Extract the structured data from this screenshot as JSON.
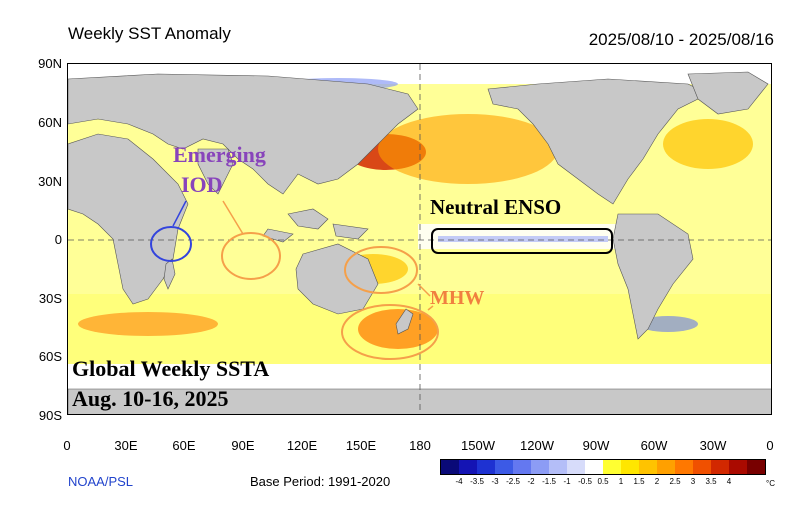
{
  "header": {
    "title": "Weekly SST Anomaly",
    "date_range": "2025/08/10 - 2025/08/16"
  },
  "axes": {
    "lat_labels": [
      "90N",
      "60N",
      "30N",
      "0",
      "30S",
      "60S",
      "90S"
    ],
    "lon_labels": [
      "0",
      "30E",
      "60E",
      "90E",
      "120E",
      "150E",
      "180",
      "150W",
      "120W",
      "90W",
      "60W",
      "30W",
      "0"
    ]
  },
  "annotations": {
    "iod_line1": "Emerging",
    "iod_line2": "IOD",
    "enso": "Neutral ENSO",
    "mhw": "MHW",
    "summary_line1": "Global Weekly SSTA",
    "summary_line2": "Aug. 10-16, 2025"
  },
  "footer": {
    "source": "NOAA/PSL",
    "base_period": "Base Period: 1991-2020"
  },
  "colorbar": {
    "unit": "°C",
    "tick_labels": [
      "-4",
      "-3.5",
      "-3",
      "-2.5",
      "-2",
      "-1.5",
      "-1",
      "-0.5",
      "0.5",
      "1",
      "1.5",
      "2",
      "2.5",
      "3",
      "3.5",
      "4"
    ],
    "colors": [
      "#0a0a78",
      "#1414b4",
      "#1e32d2",
      "#3c5ae6",
      "#6478f0",
      "#8c9cf5",
      "#b4bef8",
      "#d7dcfa",
      "#ffffff",
      "#ffff32",
      "#ffe600",
      "#ffc300",
      "#ffa000",
      "#ff7800",
      "#f05000",
      "#d22800",
      "#aa0a00",
      "#780000"
    ]
  },
  "colors": {
    "land": "#c8c8c8",
    "ocean_neutral": "#ffffff",
    "iod_circle_blue": "#3344dd",
    "mhw_orange": "#f5a04a",
    "iod_text_purple": "#8844bb",
    "mhw_text": "#f08040"
  }
}
